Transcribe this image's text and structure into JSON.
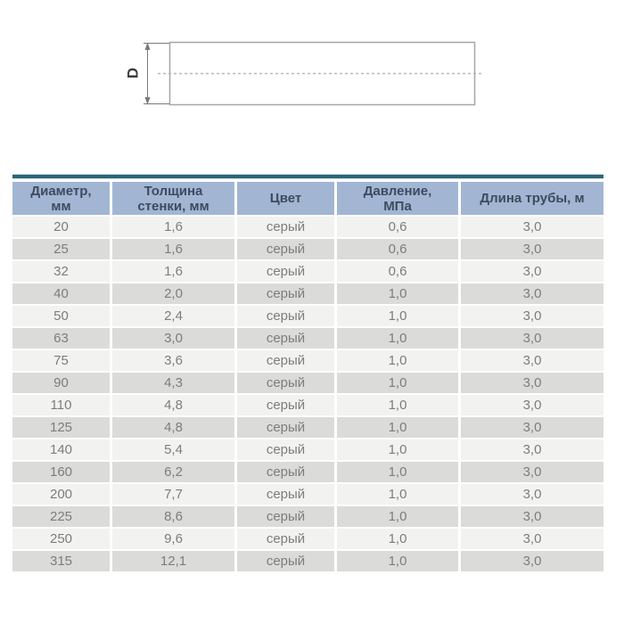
{
  "colors": {
    "accent_line": "#2c6575",
    "header_bg": "#a2b6d3",
    "header_text": "#3d4b5e",
    "row_light": "#f2f2f1",
    "row_dark": "#dbdbda",
    "cell_text": "#7d7d7d"
  },
  "diagram": {
    "dimension_label": "D"
  },
  "table": {
    "headers": [
      "Диаметр,\nмм",
      "Толщина\nстенки, мм",
      "Цвет",
      "Давление,\nМПа",
      "Длина трубы, м"
    ],
    "rows": [
      [
        "20",
        "1,6",
        "серый",
        "0,6",
        "3,0"
      ],
      [
        "25",
        "1,6",
        "серый",
        "0,6",
        "3,0"
      ],
      [
        "32",
        "1,6",
        "серый",
        "0,6",
        "3,0"
      ],
      [
        "40",
        "2,0",
        "серый",
        "1,0",
        "3,0"
      ],
      [
        "50",
        "2,4",
        "серый",
        "1,0",
        "3,0"
      ],
      [
        "63",
        "3,0",
        "серый",
        "1,0",
        "3,0"
      ],
      [
        "75",
        "3,6",
        "серый",
        "1,0",
        "3,0"
      ],
      [
        "90",
        "4,3",
        "серый",
        "1,0",
        "3,0"
      ],
      [
        "110",
        "4,8",
        "серый",
        "1,0",
        "3,0"
      ],
      [
        "125",
        "4,8",
        "серый",
        "1,0",
        "3,0"
      ],
      [
        "140",
        "5,4",
        "серый",
        "1,0",
        "3,0"
      ],
      [
        "160",
        "6,2",
        "серый",
        "1,0",
        "3,0"
      ],
      [
        "200",
        "7,7",
        "серый",
        "1,0",
        "3,0"
      ],
      [
        "225",
        "8,6",
        "серый",
        "1,0",
        "3,0"
      ],
      [
        "250",
        "9,6",
        "серый",
        "1,0",
        "3,0"
      ],
      [
        "315",
        "12,1",
        "серый",
        "1,0",
        "3,0"
      ]
    ]
  }
}
